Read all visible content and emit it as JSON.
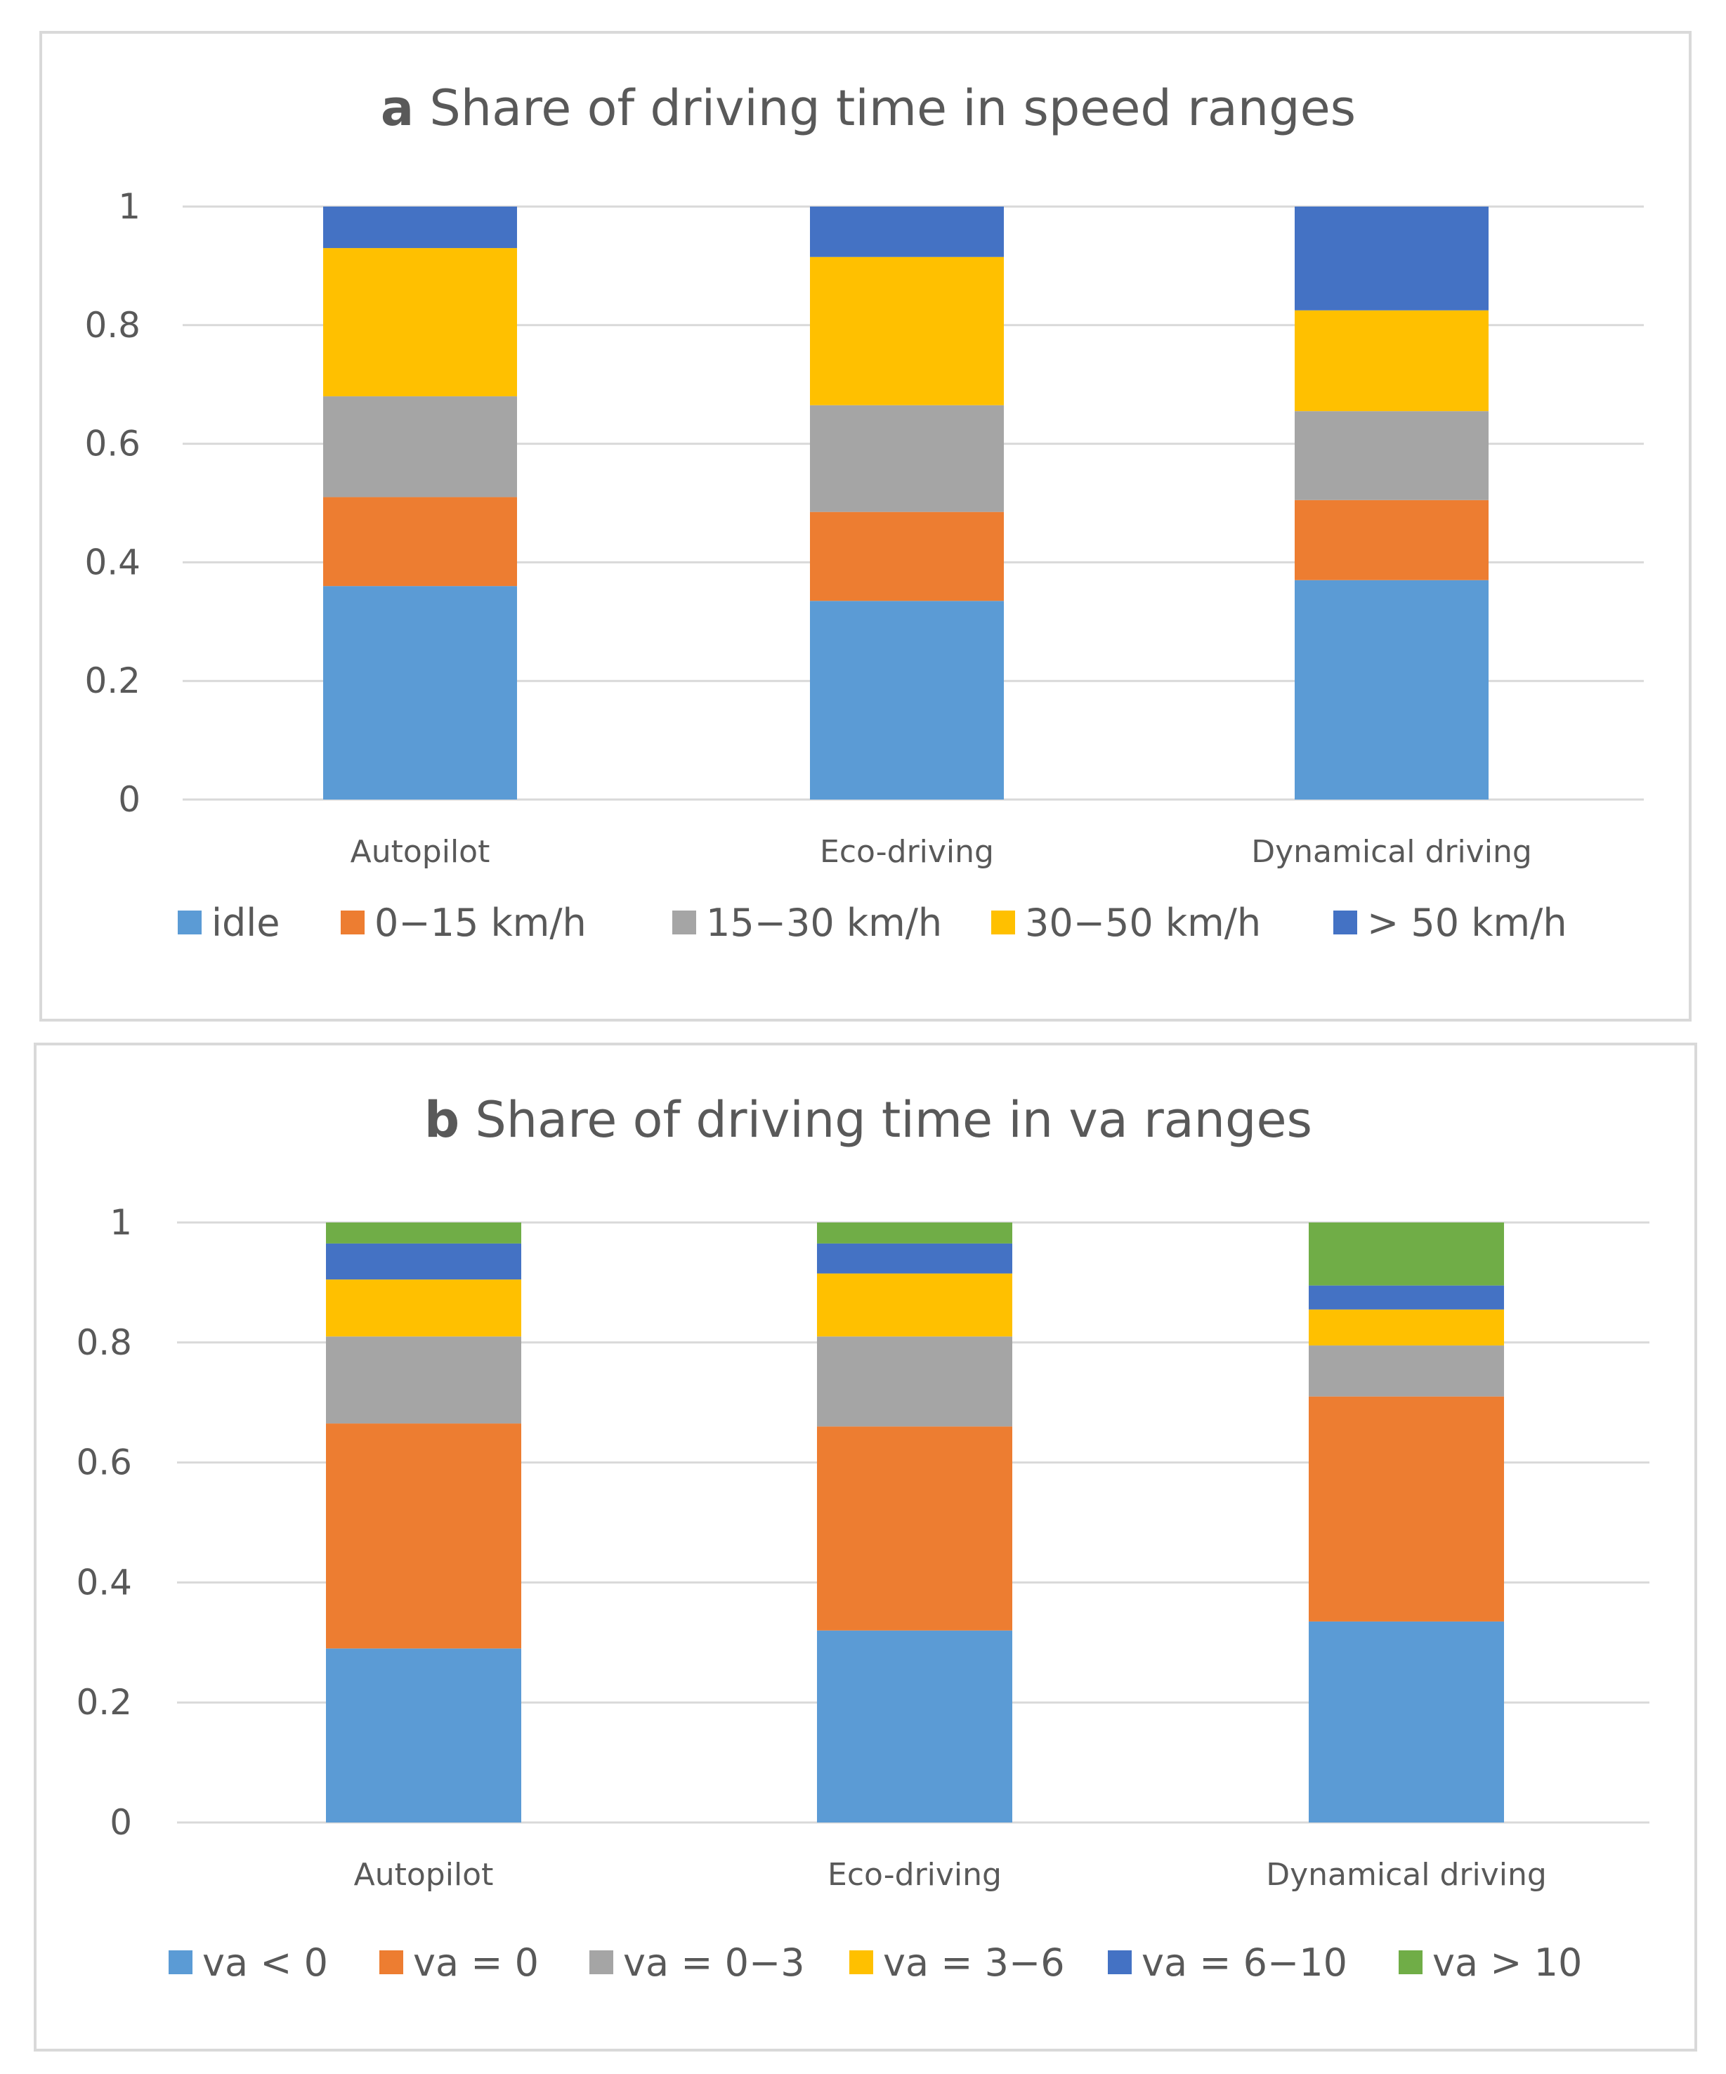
{
  "chart_data": [
    {
      "type": "bar",
      "stacked": true,
      "title_letter": "a",
      "title_text": "Share of driving time in speed ranges",
      "categories": [
        "Autopilot",
        "Eco-driving",
        "Dynamical driving"
      ],
      "ylim": [
        0,
        1
      ],
      "yticks": [
        "0",
        "0.2",
        "0.4",
        "0.6",
        "0.8",
        "1"
      ],
      "grid": true,
      "legend_position": "bottom",
      "series": [
        {
          "name": "idle",
          "color": "#5b9bd5",
          "values": [
            0.36,
            0.335,
            0.37
          ]
        },
        {
          "name": "0−15 km/h",
          "color": "#ed7d31",
          "values": [
            0.15,
            0.15,
            0.135
          ]
        },
        {
          "name": "15−30 km/h",
          "color": "#a5a5a5",
          "values": [
            0.17,
            0.18,
            0.15
          ]
        },
        {
          "name": "30−50 km/h",
          "color": "#ffc000",
          "values": [
            0.25,
            0.25,
            0.17
          ]
        },
        {
          "name": "> 50 km/h",
          "color": "#4472c4",
          "values": [
            0.07,
            0.085,
            0.175
          ]
        }
      ]
    },
    {
      "type": "bar",
      "stacked": true,
      "title_letter": "b",
      "title_text": "Share of driving time in va ranges",
      "categories": [
        "Autopilot",
        "Eco-driving",
        "Dynamical driving"
      ],
      "ylim": [
        0,
        1
      ],
      "yticks": [
        "0",
        "0.2",
        "0.4",
        "0.6",
        "0.8",
        "1"
      ],
      "grid": true,
      "legend_position": "bottom",
      "series": [
        {
          "name": "va < 0",
          "color": "#5b9bd5",
          "values": [
            0.29,
            0.32,
            0.335
          ]
        },
        {
          "name": "va = 0",
          "color": "#ed7d31",
          "values": [
            0.375,
            0.34,
            0.375
          ]
        },
        {
          "name": "va = 0−3",
          "color": "#a5a5a5",
          "values": [
            0.145,
            0.15,
            0.085
          ]
        },
        {
          "name": "va = 3−6",
          "color": "#ffc000",
          "values": [
            0.095,
            0.105,
            0.06
          ]
        },
        {
          "name": "va = 6−10",
          "color": "#4472c4",
          "values": [
            0.06,
            0.05,
            0.04
          ]
        },
        {
          "name": "va > 10",
          "color": "#70ad47",
          "values": [
            0.035,
            0.035,
            0.105
          ]
        }
      ]
    }
  ]
}
